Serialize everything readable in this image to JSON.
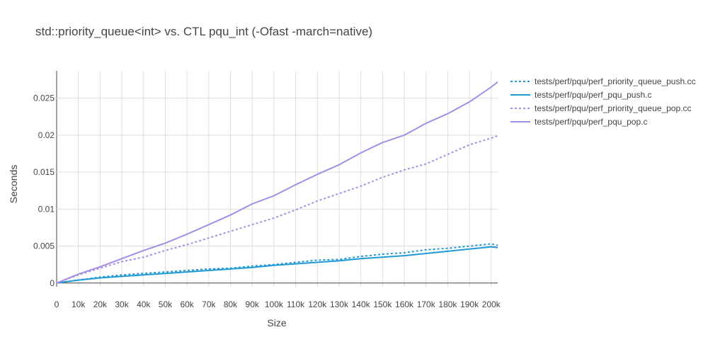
{
  "chart_data": {
    "type": "line",
    "title": "std::priority_queue<int> vs. CTL pqu_int (-Ofast -march=native)",
    "xlabel": "Size",
    "ylabel": "Seconds",
    "xlim": [
      0,
      203000
    ],
    "ylim": [
      -0.0005,
      0.0287
    ],
    "x_ticks": [
      0,
      10000,
      20000,
      30000,
      40000,
      50000,
      60000,
      70000,
      80000,
      90000,
      100000,
      110000,
      120000,
      130000,
      140000,
      150000,
      160000,
      170000,
      180000,
      190000,
      200000
    ],
    "x_tick_labels": [
      "0",
      "10k",
      "20k",
      "30k",
      "40k",
      "50k",
      "60k",
      "70k",
      "80k",
      "90k",
      "100k",
      "110k",
      "120k",
      "130k",
      "140k",
      "150k",
      "160k",
      "170k",
      "180k",
      "190k",
      "200k"
    ],
    "y_ticks": [
      0,
      0.005,
      0.01,
      0.015,
      0.02,
      0.025
    ],
    "y_tick_labels": [
      "0",
      "0.005",
      "0.01",
      "0.015",
      "0.02",
      "0.025"
    ],
    "grid": true,
    "legend_position": "right",
    "x": [
      0,
      10000,
      20000,
      30000,
      40000,
      50000,
      60000,
      70000,
      80000,
      90000,
      100000,
      110000,
      120000,
      130000,
      140000,
      150000,
      160000,
      170000,
      180000,
      190000,
      200000,
      203000
    ],
    "series": [
      {
        "name": "tests/perf/pqu/perf_priority_queue_push.cc",
        "color": "#1f9ad6",
        "dash": "dot",
        "values": [
          0,
          0.0004,
          0.0008,
          0.0011,
          0.0013,
          0.0015,
          0.0017,
          0.0019,
          0.002,
          0.0023,
          0.0025,
          0.0028,
          0.0031,
          0.0032,
          0.0036,
          0.0039,
          0.0041,
          0.0045,
          0.0047,
          0.005,
          0.0053,
          0.0051
        ]
      },
      {
        "name": "tests/perf/pqu/perf_pqu_push.c",
        "color": "#1f9ad6",
        "dash": "solid",
        "values": [
          0,
          0.0004,
          0.0007,
          0.0009,
          0.0011,
          0.0013,
          0.0015,
          0.0017,
          0.0019,
          0.0021,
          0.0024,
          0.0026,
          0.0028,
          0.003,
          0.0033,
          0.0035,
          0.0037,
          0.004,
          0.0043,
          0.0046,
          0.0049,
          0.0048
        ]
      },
      {
        "name": "tests/perf/pqu/perf_priority_queue_pop.cc",
        "color": "#a58ee8",
        "dash": "dot",
        "values": [
          0,
          0.0011,
          0.002,
          0.0029,
          0.0035,
          0.0044,
          0.0052,
          0.0061,
          0.007,
          0.0079,
          0.0088,
          0.0099,
          0.0111,
          0.0121,
          0.0131,
          0.0143,
          0.0153,
          0.0161,
          0.0174,
          0.0187,
          0.0196,
          0.0199
        ]
      },
      {
        "name": "tests/perf/pqu/perf_pqu_pop.c",
        "color": "#a58ee8",
        "dash": "solid",
        "values": [
          0,
          0.0012,
          0.0022,
          0.0033,
          0.0044,
          0.0054,
          0.0066,
          0.0079,
          0.0092,
          0.0107,
          0.0118,
          0.0133,
          0.0147,
          0.016,
          0.0176,
          0.019,
          0.02,
          0.0216,
          0.0229,
          0.0245,
          0.0265,
          0.0272
        ]
      }
    ]
  }
}
